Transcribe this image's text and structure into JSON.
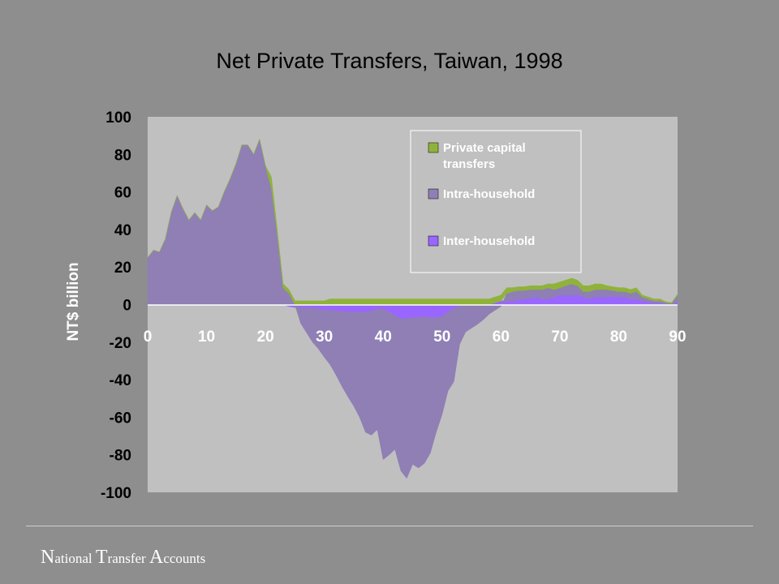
{
  "chart_data": {
    "type": "area",
    "title": "Net Private Transfers, Taiwan, 1998",
    "ylabel": "NT$ billion",
    "xlabel": "",
    "xlim": [
      0,
      90
    ],
    "ylim": [
      -100,
      100
    ],
    "yticks": [
      "100",
      "80",
      "60",
      "40",
      "20",
      "0",
      "-20",
      "-40",
      "-60",
      "-80",
      "-100"
    ],
    "xticks": [
      "0",
      "10",
      "20",
      "30",
      "40",
      "50",
      "60",
      "70",
      "80",
      "90"
    ],
    "grid": false,
    "legend_position": "top-right",
    "x": [
      0,
      1,
      2,
      3,
      4,
      5,
      6,
      7,
      8,
      9,
      10,
      11,
      12,
      13,
      14,
      15,
      16,
      17,
      18,
      19,
      20,
      21,
      22,
      23,
      24,
      25,
      26,
      27,
      28,
      29,
      30,
      31,
      32,
      33,
      34,
      35,
      36,
      37,
      38,
      39,
      40,
      41,
      42,
      43,
      44,
      45,
      46,
      47,
      48,
      49,
      50,
      51,
      52,
      53,
      54,
      55,
      56,
      57,
      58,
      59,
      60,
      61,
      62,
      63,
      64,
      65,
      66,
      67,
      68,
      69,
      70,
      71,
      72,
      73,
      74,
      75,
      76,
      77,
      78,
      79,
      80,
      81,
      82,
      83,
      84,
      85,
      86,
      87,
      88,
      89,
      90
    ],
    "series": [
      {
        "name": "Inter-household",
        "color": "#9966ff",
        "values": [
          0,
          0,
          0,
          0,
          0,
          0,
          0,
          0,
          0,
          0,
          0,
          0,
          0,
          0,
          0,
          0,
          0,
          0,
          0,
          0,
          0,
          0,
          0,
          0,
          -1,
          -1.5,
          -2,
          -2,
          -2,
          -2.5,
          -3,
          -3,
          -3.5,
          -3.5,
          -4,
          -4,
          -4,
          -4,
          -3.5,
          -2.5,
          -2.5,
          -4,
          -6,
          -7.5,
          -7.5,
          -7,
          -7,
          -6.5,
          -7,
          -7,
          -6.5,
          -4,
          -2,
          -1,
          -0.5,
          -0.5,
          -0.5,
          0,
          0,
          1,
          2,
          2,
          2,
          2.5,
          3,
          3.5,
          4,
          3,
          3,
          4,
          5,
          5,
          5,
          5,
          4,
          3,
          4,
          4,
          4,
          4.5,
          4,
          4,
          3,
          3,
          2,
          1.5,
          1,
          1,
          0.5,
          0.5,
          1
        ]
      },
      {
        "name": "Intra-household",
        "color": "#8f7fb5",
        "values": [
          25,
          29,
          28,
          35,
          49,
          58,
          51,
          45,
          49,
          45,
          53,
          50,
          52,
          60,
          67,
          75,
          85,
          85,
          80,
          88,
          74,
          62,
          38,
          9,
          6,
          0,
          -8,
          -13,
          -18,
          -21,
          -25,
          -29,
          -34,
          -40,
          -45,
          -50,
          -56,
          -64,
          -66,
          -64,
          -80,
          -76,
          -71,
          -81,
          -85,
          -78,
          -80,
          -78,
          -72,
          -61,
          -52,
          -42,
          -39,
          -20,
          -14,
          -12,
          -10,
          -8,
          -5,
          -3,
          -1,
          4,
          5,
          5,
          4.5,
          4.5,
          4,
          5,
          6,
          4,
          4,
          5,
          6,
          5,
          3,
          4,
          4,
          4,
          4,
          3,
          3,
          3,
          3,
          4,
          2,
          1.5,
          1,
          1,
          0.5,
          0,
          4
        ]
      },
      {
        "name": "Private capital transfers",
        "color": "#8fb33a",
        "values": [
          0,
          0,
          0,
          0,
          0,
          0,
          0,
          0,
          0,
          0,
          0,
          0,
          0,
          0,
          0,
          0,
          0,
          0,
          0,
          0,
          0,
          6,
          2,
          2,
          2,
          2,
          2,
          2,
          2,
          2,
          2,
          3,
          3,
          3,
          3,
          3,
          3,
          3,
          3,
          3,
          3,
          3,
          3,
          3,
          3,
          3,
          3,
          3,
          3,
          3,
          3,
          3,
          3,
          3,
          3,
          3,
          3,
          3,
          3,
          3,
          3,
          3,
          2,
          2,
          2,
          2,
          2,
          2,
          2,
          3,
          3,
          3,
          3,
          3,
          3,
          3,
          3,
          3,
          2,
          2,
          2,
          2,
          2,
          2,
          1,
          1,
          1,
          1,
          0.5,
          0.5,
          0.5
        ]
      }
    ]
  },
  "footer": {
    "n_cap": "N",
    "n_rest": "ational ",
    "t_cap": "T",
    "t_rest": "ransfer ",
    "a_cap": "A",
    "a_rest": "ccounts"
  }
}
